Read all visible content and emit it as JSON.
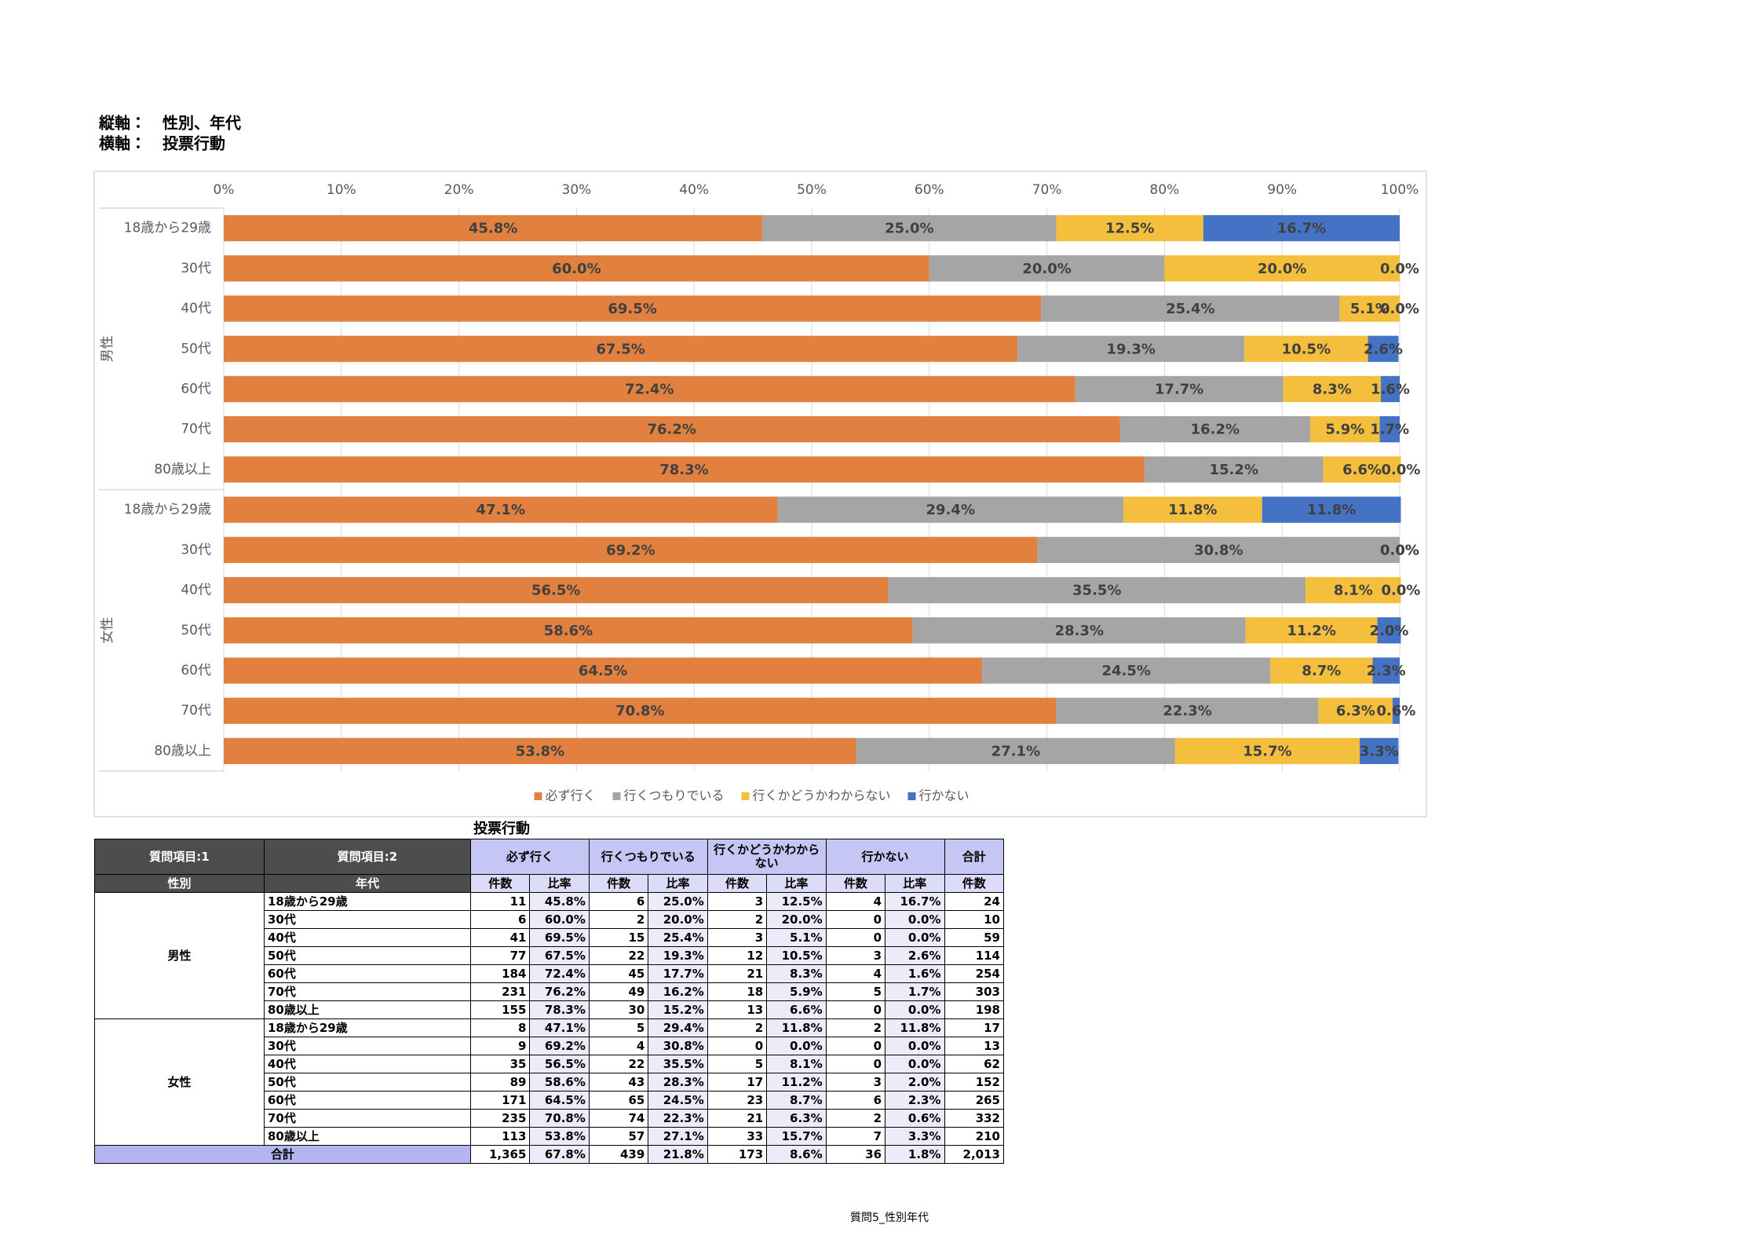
{
  "header": {
    "vertical_label": "縦軸：",
    "vertical_value": "性別、年代",
    "horizontal_label": "横軸：",
    "horizontal_value": "投票行動"
  },
  "chart_data": {
    "type": "bar",
    "orientation": "horizontal",
    "stacked": true,
    "groups": [
      {
        "name": "男性",
        "categories": [
          "18歳から29歳",
          "30代",
          "40代",
          "50代",
          "60代",
          "70代",
          "80歳以上"
        ]
      },
      {
        "name": "女性",
        "categories": [
          "18歳から29歳",
          "30代",
          "40代",
          "50代",
          "60代",
          "70代",
          "80歳以上"
        ]
      }
    ],
    "series": [
      {
        "name": "必ず行く",
        "color": "#e2813f",
        "values": [
          45.8,
          60.0,
          69.5,
          67.5,
          72.4,
          76.2,
          78.3,
          47.1,
          69.2,
          56.5,
          58.6,
          64.5,
          70.8,
          53.8
        ],
        "value_labels": [
          "45.8%",
          "60.0%",
          "69.5%",
          "67.5%",
          "72.4%",
          "76.2%",
          "78.3%",
          "47.1%",
          "69.2%",
          "56.5%",
          "58.6%",
          "64.5%",
          "70.8%",
          "53.8%"
        ]
      },
      {
        "name": "行くつもりでいる",
        "color": "#a5a5a5",
        "values": [
          25.0,
          20.0,
          25.4,
          19.3,
          17.7,
          16.2,
          15.2,
          29.4,
          30.8,
          35.5,
          28.3,
          24.5,
          22.3,
          27.1
        ],
        "value_labels": [
          "25.0%",
          "20.0%",
          "25.4%",
          "19.3%",
          "17.7%",
          "16.2%",
          "15.2%",
          "29.4%",
          "30.8%",
          "35.5%",
          "28.3%",
          "24.5%",
          "22.3%",
          "27.1%"
        ]
      },
      {
        "name": "行くかどうかわからない",
        "color": "#f5bf3e",
        "values": [
          12.5,
          20.0,
          5.1,
          10.5,
          8.3,
          5.9,
          6.6,
          11.8,
          0.0,
          8.1,
          11.2,
          8.7,
          6.3,
          15.7
        ],
        "value_labels": [
          "12.5%",
          "20.0%",
          "5.1%",
          "10.5%",
          "8.3%",
          "5.9%",
          "6.6%",
          "11.8%",
          "0.0%",
          "8.1%",
          "11.2%",
          "8.7%",
          "6.3%",
          "15.7%"
        ]
      },
      {
        "name": "行かない",
        "color": "#4472c4",
        "values": [
          16.7,
          0.0,
          0.0,
          2.6,
          1.6,
          1.7,
          0.0,
          11.8,
          0.0,
          0.0,
          2.0,
          2.3,
          0.6,
          3.3
        ],
        "value_labels": [
          "16.7%",
          "0.0%",
          "0.0%",
          "2.6%",
          "1.6%",
          "1.7%",
          "0.0%",
          "11.8%",
          "0.0%",
          "0.0%",
          "2.0%",
          "2.3%",
          "0.6%",
          "3.3%"
        ]
      }
    ],
    "xlim": [
      0,
      100
    ],
    "xticks": [
      {
        "value": 0,
        "label": "0%"
      },
      {
        "value": 10,
        "label": "10%"
      },
      {
        "value": 20,
        "label": "20%"
      },
      {
        "value": 30,
        "label": "30%"
      },
      {
        "value": 40,
        "label": "40%"
      },
      {
        "value": 50,
        "label": "50%"
      },
      {
        "value": 60,
        "label": "60%"
      },
      {
        "value": 70,
        "label": "70%"
      },
      {
        "value": 80,
        "label": "80%"
      },
      {
        "value": 90,
        "label": "90%"
      },
      {
        "value": 100,
        "label": "100%"
      }
    ],
    "grid": true,
    "legend": "bottom"
  },
  "table": {
    "title": "投票行動",
    "corner": [
      [
        "質問項目:1",
        "質問項目:2"
      ],
      [
        "性別",
        "年代"
      ]
    ],
    "columns": [
      "必ず行く",
      "行くつもりでいる",
      "行くかどうかわからない",
      "行かない",
      "合計"
    ],
    "subcolumns": [
      "件数",
      "比率",
      "件数",
      "比率",
      "件数",
      "比率",
      "件数",
      "比率",
      "件数"
    ],
    "groups": [
      {
        "name": "男性",
        "rows": [
          [
            "18歳から29歳",
            "11",
            "45.8%",
            "6",
            "25.0%",
            "3",
            "12.5%",
            "4",
            "16.7%",
            "24"
          ],
          [
            "30代",
            "6",
            "60.0%",
            "2",
            "20.0%",
            "2",
            "20.0%",
            "0",
            "0.0%",
            "10"
          ],
          [
            "40代",
            "41",
            "69.5%",
            "15",
            "25.4%",
            "3",
            "5.1%",
            "0",
            "0.0%",
            "59"
          ],
          [
            "50代",
            "77",
            "67.5%",
            "22",
            "19.3%",
            "12",
            "10.5%",
            "3",
            "2.6%",
            "114"
          ],
          [
            "60代",
            "184",
            "72.4%",
            "45",
            "17.7%",
            "21",
            "8.3%",
            "4",
            "1.6%",
            "254"
          ],
          [
            "70代",
            "231",
            "76.2%",
            "49",
            "16.2%",
            "18",
            "5.9%",
            "5",
            "1.7%",
            "303"
          ],
          [
            "80歳以上",
            "155",
            "78.3%",
            "30",
            "15.2%",
            "13",
            "6.6%",
            "0",
            "0.0%",
            "198"
          ]
        ]
      },
      {
        "name": "女性",
        "rows": [
          [
            "18歳から29歳",
            "8",
            "47.1%",
            "5",
            "29.4%",
            "2",
            "11.8%",
            "2",
            "11.8%",
            "17"
          ],
          [
            "30代",
            "9",
            "69.2%",
            "4",
            "30.8%",
            "0",
            "0.0%",
            "0",
            "0.0%",
            "13"
          ],
          [
            "40代",
            "35",
            "56.5%",
            "22",
            "35.5%",
            "5",
            "8.1%",
            "0",
            "0.0%",
            "62"
          ],
          [
            "50代",
            "89",
            "58.6%",
            "43",
            "28.3%",
            "17",
            "11.2%",
            "3",
            "2.0%",
            "152"
          ],
          [
            "60代",
            "171",
            "64.5%",
            "65",
            "24.5%",
            "23",
            "8.7%",
            "6",
            "2.3%",
            "265"
          ],
          [
            "70代",
            "235",
            "70.8%",
            "74",
            "22.3%",
            "21",
            "6.3%",
            "2",
            "0.6%",
            "332"
          ],
          [
            "80歳以上",
            "113",
            "53.8%",
            "57",
            "27.1%",
            "33",
            "15.7%",
            "7",
            "3.3%",
            "210"
          ]
        ]
      }
    ],
    "total": [
      "合計",
      "1,365",
      "67.8%",
      "439",
      "21.8%",
      "173",
      "8.6%",
      "36",
      "1.8%",
      "2,013"
    ]
  },
  "footer": "質問5_性別年代"
}
